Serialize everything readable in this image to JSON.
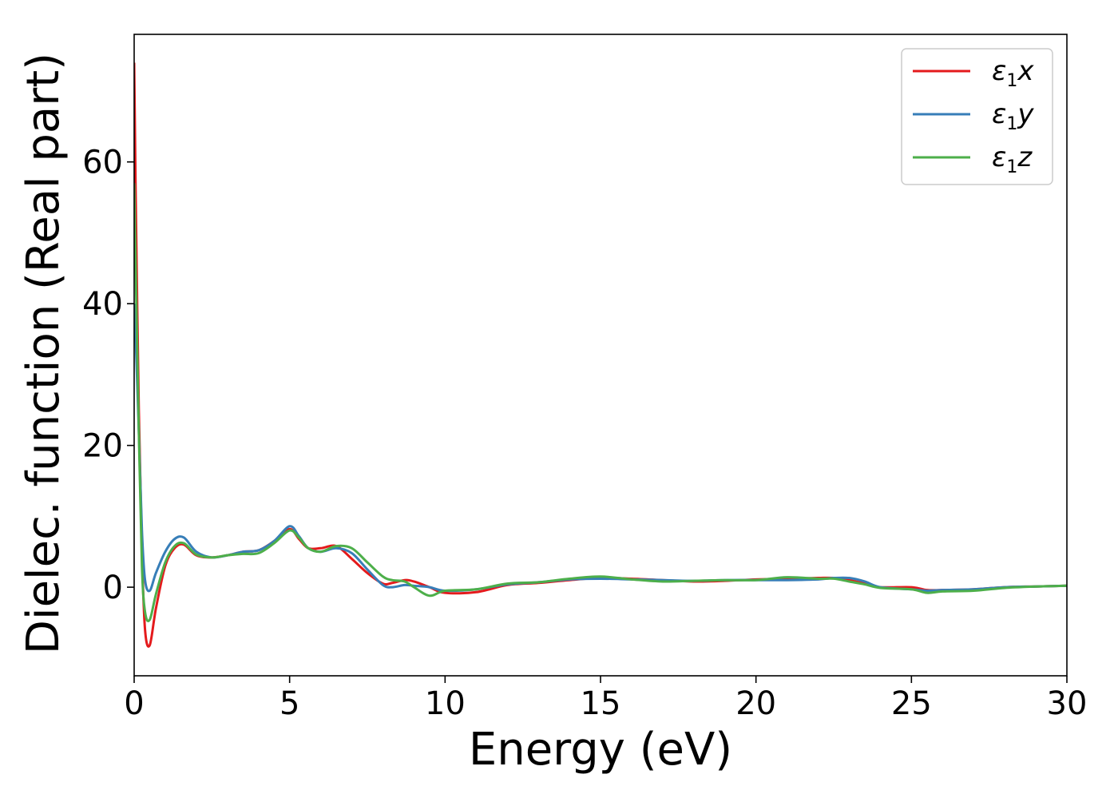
{
  "chart_data": {
    "type": "line",
    "title": "",
    "xlabel": "Energy (eV)",
    "ylabel": "Dielec. function (Real part)",
    "xlim": [
      0,
      30
    ],
    "ylim": [
      -12.5,
      78
    ],
    "xticks": [
      0,
      5,
      10,
      15,
      20,
      25,
      30
    ],
    "xtick_labels": [
      "0",
      "5",
      "10",
      "15",
      "20",
      "25",
      "30"
    ],
    "yticks": [
      0,
      20,
      40,
      60
    ],
    "ytick_labels": [
      "0",
      "20",
      "40",
      "60"
    ],
    "grid": false,
    "legend_position": "top-right",
    "series": [
      {
        "name": "ε₁x",
        "legend_symbol": "ε",
        "legend_sub": "1",
        "legend_var": "x",
        "color": "#e41a1c",
        "x": [
          0,
          0.05,
          0.15,
          0.25,
          0.35,
          0.5,
          0.7,
          1.0,
          1.3,
          1.6,
          2.0,
          2.5,
          3.0,
          3.5,
          4.0,
          4.5,
          5.0,
          5.3,
          5.6,
          6.0,
          6.5,
          7.0,
          7.5,
          8.0,
          8.3,
          8.7,
          9.0,
          9.5,
          10.0,
          11.0,
          12.0,
          13.0,
          14.0,
          15.0,
          16.0,
          17.0,
          18.0,
          19.0,
          20.0,
          21.0,
          22.0,
          22.5,
          23.0,
          23.5,
          24.0,
          25.0,
          25.5,
          26.0,
          27.0,
          28.0,
          29.0,
          30.0
        ],
        "y": [
          74,
          55,
          25,
          5,
          -6,
          -8.2,
          -3,
          3,
          5.5,
          6,
          4.5,
          4.2,
          4.5,
          5,
          5.2,
          6.5,
          8.2,
          6.8,
          5.5,
          5.5,
          5.8,
          4,
          2,
          0.5,
          0.6,
          1,
          0.8,
          0,
          -0.8,
          -0.7,
          0.3,
          0.6,
          1,
          1.3,
          1.2,
          1,
          0.8,
          0.9,
          1.1,
          1.2,
          1.3,
          1.3,
          1.0,
          0.5,
          0,
          0,
          -0.4,
          -0.4,
          -0.3,
          0,
          0.1,
          0.2
        ]
      },
      {
        "name": "ε₁y",
        "legend_symbol": "ε",
        "legend_sub": "1",
        "legend_var": "y",
        "color": "#377eb8",
        "x": [
          0,
          0.05,
          0.15,
          0.25,
          0.35,
          0.5,
          0.7,
          1.0,
          1.3,
          1.6,
          2.0,
          2.5,
          3.0,
          3.5,
          4.0,
          4.5,
          5.0,
          5.3,
          5.6,
          6.0,
          6.5,
          7.0,
          7.5,
          8.0,
          8.3,
          8.7,
          9.0,
          9.5,
          10.0,
          11.0,
          12.0,
          13.0,
          14.0,
          15.0,
          16.0,
          17.0,
          18.0,
          19.0,
          20.0,
          21.0,
          22.0,
          22.5,
          23.0,
          23.5,
          24.0,
          25.0,
          25.5,
          26.0,
          27.0,
          28.0,
          29.0,
          30.0
        ],
        "y": [
          40,
          35,
          22,
          8,
          1,
          -0.5,
          2,
          5,
          6.8,
          7,
          5,
          4.2,
          4.5,
          5,
          5.2,
          6.5,
          8.6,
          7.2,
          5.5,
          5,
          5.5,
          4.8,
          2.5,
          0.3,
          0,
          0.3,
          0.2,
          0,
          -0.5,
          -0.3,
          0.4,
          0.7,
          1.1,
          1.2,
          1.1,
          1.0,
          0.9,
          1.0,
          1.0,
          1.0,
          1.1,
          1.3,
          1.3,
          0.8,
          0,
          -0.3,
          -0.5,
          -0.4,
          -0.3,
          0,
          0.1,
          0.2
        ]
      },
      {
        "name": "ε₁z",
        "legend_symbol": "ε",
        "legend_sub": "1",
        "legend_var": "z",
        "color": "#4daf4a",
        "x": [
          0,
          0.05,
          0.15,
          0.25,
          0.35,
          0.5,
          0.7,
          1.0,
          1.3,
          1.6,
          2.0,
          2.5,
          3.0,
          3.5,
          4.0,
          4.5,
          5.0,
          5.3,
          5.6,
          6.0,
          6.5,
          7.0,
          7.5,
          8.0,
          8.3,
          8.7,
          9.0,
          9.5,
          10.0,
          11.0,
          12.0,
          13.0,
          14.0,
          15.0,
          16.0,
          17.0,
          18.0,
          19.0,
          20.0,
          21.0,
          22.0,
          22.5,
          23.0,
          23.5,
          24.0,
          25.0,
          25.5,
          26.0,
          27.0,
          28.0,
          29.0,
          30.0
        ],
        "y": [
          57,
          45,
          22,
          3,
          -3.5,
          -4.6,
          -1,
          3.5,
          5.8,
          6.2,
          4.6,
          4.2,
          4.5,
          4.7,
          4.8,
          6.2,
          8.0,
          7.0,
          5.5,
          5,
          5.8,
          5.5,
          3.5,
          1.5,
          1,
          0.8,
          0,
          -1.2,
          -0.5,
          -0.3,
          0.5,
          0.7,
          1.2,
          1.5,
          1.1,
          0.8,
          0.9,
          1.0,
          1.0,
          1.4,
          1.2,
          1.2,
          0.8,
          0.4,
          -0.1,
          -0.3,
          -0.8,
          -0.6,
          -0.5,
          -0.1,
          0.1,
          0.2
        ]
      }
    ]
  }
}
